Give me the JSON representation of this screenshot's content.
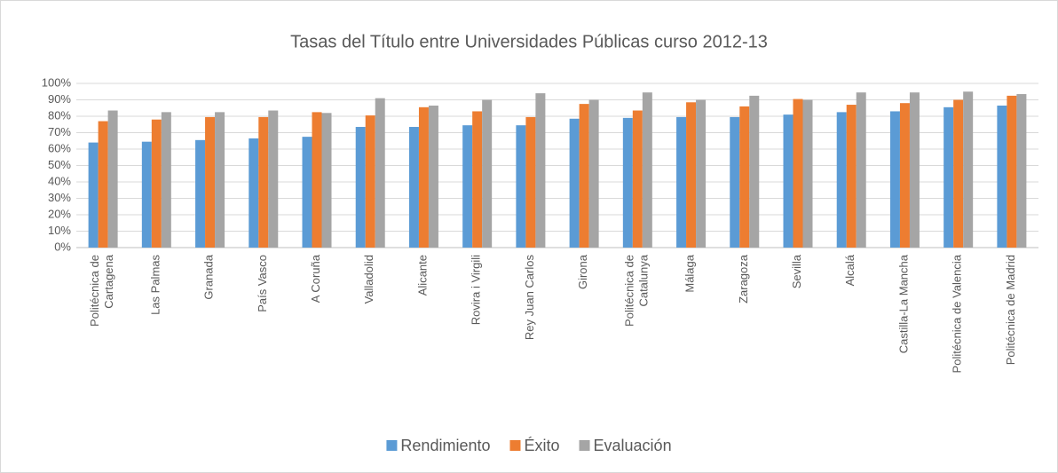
{
  "chart_data": {
    "type": "bar",
    "title": "Tasas del Título entre Universidades Públicas curso 2012-13",
    "categories": [
      "Politécnica de\nCartagena",
      "Las Palmas",
      "Granada",
      "País Vasco",
      "A Coruña",
      "Valladolid",
      "Alicante",
      "Rovira i Virgili",
      "Rey Juan Carlos",
      "Girona",
      "Politécnica de\nCatalunya",
      "Málaga",
      "Zaragoza",
      "Sevilla",
      "Alcalá",
      "Castilla-La Mancha",
      "Politécnica de Valencia",
      "Politécnica de Madrid"
    ],
    "series": [
      {
        "name": "Rendimiento",
        "color": "#5b9bd5",
        "values": [
          64,
          64.5,
          65.5,
          66.5,
          67.5,
          73.5,
          73.5,
          74.5,
          74.5,
          78.5,
          79,
          79.5,
          79.5,
          81,
          82.5,
          83,
          85.5,
          86.5
        ]
      },
      {
        "name": "Éxito",
        "color": "#ed7d31",
        "values": [
          77,
          78,
          79.5,
          79.5,
          82.5,
          80.5,
          85.5,
          83,
          79.5,
          87.5,
          83.5,
          88.5,
          86,
          90.5,
          87,
          88,
          90,
          92.5
        ]
      },
      {
        "name": "Evaluación",
        "color": "#a5a5a5",
        "values": [
          83.5,
          82.5,
          82.5,
          83.5,
          82,
          91,
          86.5,
          90,
          94,
          90,
          94.5,
          90,
          92.5,
          90,
          94.5,
          94.5,
          95,
          93.5
        ]
      }
    ],
    "ylim": [
      0,
      100
    ],
    "yticks": [
      {
        "value": 0,
        "label": "0%"
      },
      {
        "value": 10,
        "label": "10%"
      },
      {
        "value": 20,
        "label": "20%"
      },
      {
        "value": 30,
        "label": "30%"
      },
      {
        "value": 40,
        "label": "40%"
      },
      {
        "value": 50,
        "label": "50%"
      },
      {
        "value": 60,
        "label": "60%"
      },
      {
        "value": 70,
        "label": "70%"
      },
      {
        "value": 80,
        "label": "80%"
      },
      {
        "value": 90,
        "label": "90%"
      },
      {
        "value": 100,
        "label": "100%"
      }
    ],
    "grid": true,
    "legend": "bottom"
  }
}
